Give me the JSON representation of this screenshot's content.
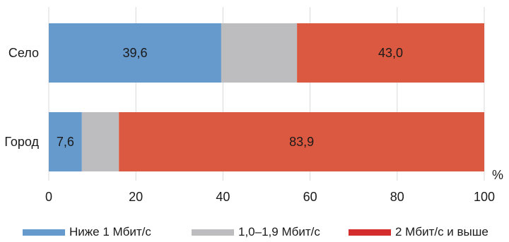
{
  "chart_data": {
    "type": "bar",
    "orientation": "horizontal",
    "stacked": true,
    "categories": [
      "Село",
      "Город"
    ],
    "series": [
      {
        "name": "Ниже 1 Мбит/с",
        "values": [
          39.6,
          7.6
        ],
        "labels": [
          "39,6",
          "7,6"
        ],
        "color": "#6699cc"
      },
      {
        "name": "1,0–1,9 Мбит/с",
        "values": [
          17.4,
          8.5
        ],
        "labels": [
          "",
          ""
        ],
        "color": "#bdbdbf"
      },
      {
        "name": "2 Мбит/с и выше",
        "values": [
          43.0,
          83.9
        ],
        "labels": [
          "43,0",
          "83,9"
        ],
        "color": "#db5940"
      }
    ],
    "xlim": [
      0,
      100
    ],
    "xticks": [
      0,
      20,
      40,
      60,
      80,
      100
    ],
    "xtick_labels": [
      "0",
      "20",
      "40",
      "60",
      "80",
      "100"
    ],
    "unit": "%",
    "grid": true,
    "legend_position": "bottom",
    "legend_swatch_colors": [
      "#6699cc",
      "#bdbdbf",
      "#d42d2d"
    ]
  }
}
